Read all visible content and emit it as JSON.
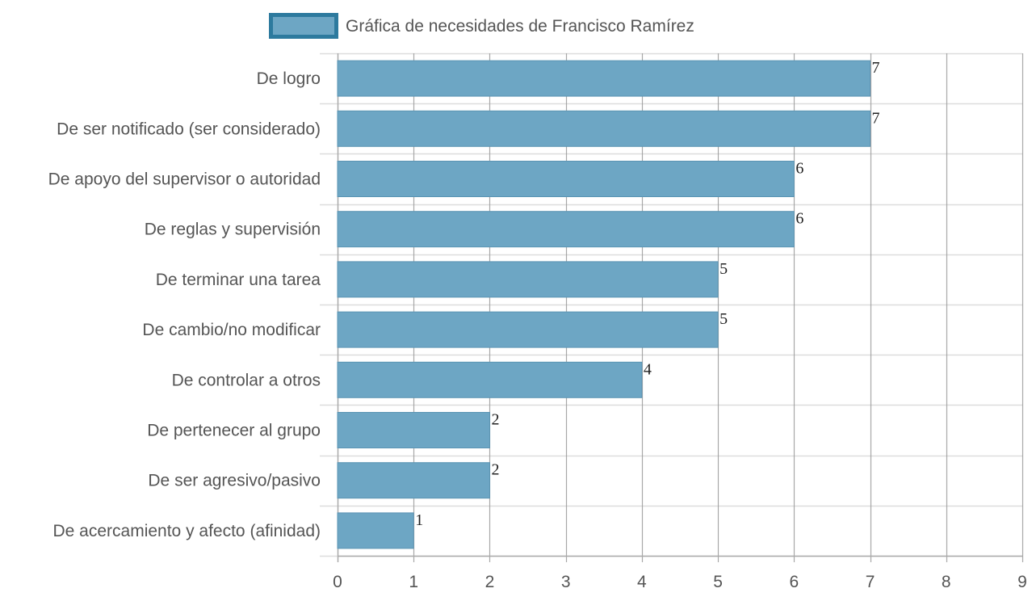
{
  "chart_data": {
    "type": "bar",
    "orientation": "horizontal",
    "categories": [
      "De logro",
      "De ser notificado (ser considerado)",
      "De apoyo del supervisor o autoridad",
      "De reglas y supervisión",
      "De terminar una tarea",
      "De cambio/no modificar",
      "De controlar a otros",
      "De pertenecer al grupo",
      "De ser agresivo/pasivo",
      "De acercamiento y afecto (afinidad)"
    ],
    "series": [
      {
        "name": "Gráfica de necesidades de Francisco Ramírez",
        "values": [
          7,
          7,
          6,
          6,
          5,
          5,
          4,
          2,
          2,
          1
        ]
      }
    ],
    "xlim": [
      0,
      9
    ],
    "xticks": [
      "0",
      "1",
      "2",
      "3",
      "4",
      "5",
      "6",
      "7",
      "8",
      "9"
    ],
    "grid": true,
    "legend_position": "top",
    "colors": {
      "bar_fill": "#6da6c4",
      "bar_stroke": "#5a94b3",
      "legend_border": "#2d7a9e",
      "grid": "#dddddd",
      "vgrid": "#999999"
    }
  }
}
